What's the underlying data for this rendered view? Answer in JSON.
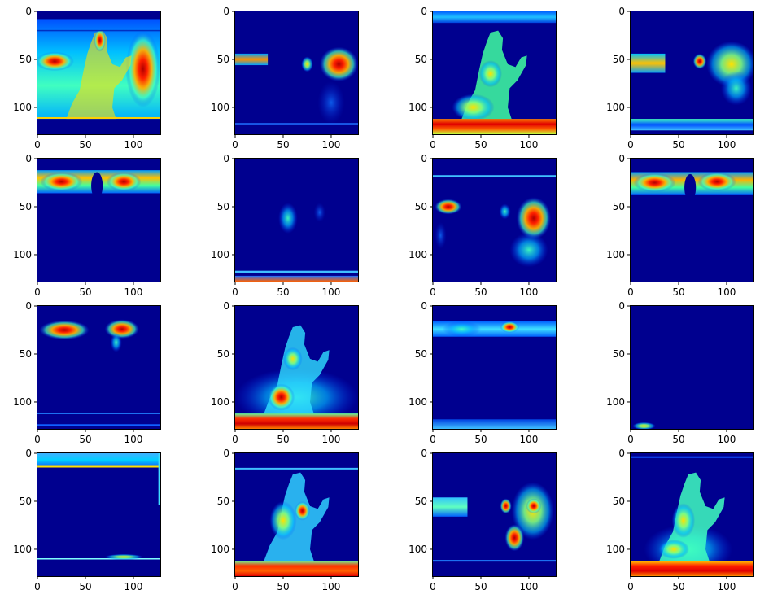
{
  "chart_data": {
    "type": "heatmap",
    "layout": {
      "rows": 4,
      "cols": 4
    },
    "colormap": "jet",
    "image_size": [
      128,
      128
    ],
    "x_ticks": [
      0,
      50,
      100
    ],
    "y_ticks": [
      0,
      50,
      100
    ],
    "xlim": [
      0,
      128
    ],
    "ylim": [
      128,
      0
    ],
    "background_color": "#00008f",
    "panels": [
      {
        "id": 1,
        "description": "edge-like activation of full scene; silhouette outline, high response on right and left bands, bright horizontal edge at y~111"
      },
      {
        "id": 2,
        "description": "sparse: left band at y~50 (x 0-35) and right cluster (x 90-128, y 40-70), hand outline"
      },
      {
        "id": 3,
        "description": "figure silhouette filled (green/yellow), strong red band at bottom y 112-128, blue top band"
      },
      {
        "id": 4,
        "description": "left and right side bands at y~50, hand shape, bright floor band at y~115"
      },
      {
        "id": 5,
        "description": "top band y 15-35 with red peaks at x 10-50 and 75-110, dip around head at x~62"
      },
      {
        "id": 6,
        "description": "small activation around hands x 45-95, y 40-80; bottom strip at y~120"
      },
      {
        "id": 7,
        "description": "top thin line at y~18, left blob at y~50, hand blob, right cluster with red at x~105 y~60"
      },
      {
        "id": 8,
        "description": "top band y 15-35 with red peaks, similar to panel 5"
      },
      {
        "id": 9,
        "description": "top band y 15-35 with red peaks at x 10-50 and 75-110; faint line at y~112"
      },
      {
        "id": 10,
        "description": "figure silhouette blurred, red near x~45 y~95, bright floor band y 112-128"
      },
      {
        "id": 11,
        "description": "top band y 15-35 weaker, red spot at x~80; bottom band y~122"
      },
      {
        "id": 12,
        "description": "almost empty; tiny activation at bottom-left x 0-25, y ~125"
      },
      {
        "id": 13,
        "description": "horizontal lines at y~3, y~14 and y~110; mostly empty interior"
      },
      {
        "id": 14,
        "description": "figure silhouette with horizontal line artifacts at y~15, red floor band y 112-128"
      },
      {
        "id": 15,
        "description": "left band y~50, hand blob at x~78, right cluster with red at x~105 y~55, bottom lines"
      },
      {
        "id": 16,
        "description": "figure silhouette (cyan/yellow), red floor band y 112-128"
      }
    ]
  }
}
